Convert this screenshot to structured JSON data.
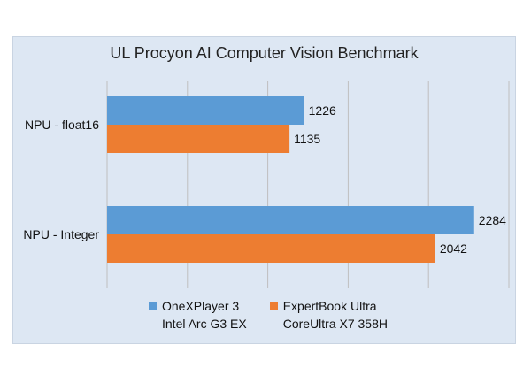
{
  "chart_data": {
    "type": "bar",
    "orientation": "horizontal",
    "title": "UL Procyon AI Computer Vision Benchmark",
    "categories": [
      "NPU - float16",
      "NPU - Integer"
    ],
    "series": [
      {
        "name": "OneXPlayer 3\nIntel Arc G3 EX",
        "color": "#5b9bd5",
        "values": [
          1226,
          2284
        ]
      },
      {
        "name": "ExpertBook Ultra\nCoreUltra X7 358H",
        "color": "#ed7d31",
        "values": [
          1135,
          2042
        ]
      }
    ],
    "xlim": [
      0,
      2500
    ],
    "grid": true,
    "legend_position": "bottom"
  }
}
